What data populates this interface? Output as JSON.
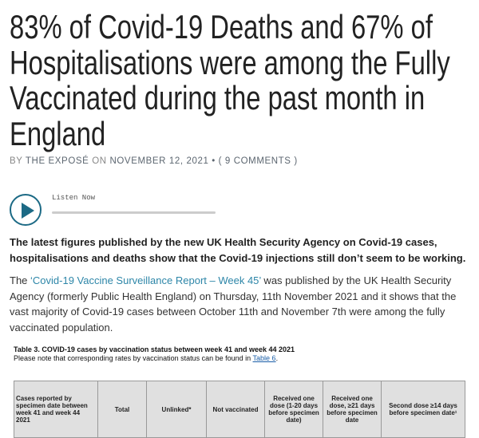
{
  "title": "83% of Covid-19 Deaths and 67% of Hospitalisations were among the Fully Vaccinated during the past month in England",
  "meta": {
    "by": "BY ",
    "author": "THE EXPOSÉ",
    "on": " ON ",
    "date": "NOVEMBER 12, 2021",
    "sep": " • ( ",
    "comments": "9 COMMENTS",
    "close": " )"
  },
  "player": {
    "label": "Listen Now"
  },
  "lead": "The latest figures published by the new UK Health Security Agency on Covid-19 cases, hospitalisations and deaths show that the Covid-19 injections still don’t seem to be working.",
  "para": {
    "pre": "The ",
    "link": "‘Covid-19 Vaccine Surveillance Report – Week 45’",
    "post": " was published by the UK Health Security Agency (formerly Public Health England) on Thursday, 11th November 2021 and it shows that the vast majority of Covid-19 cases between October 11th and November 7th were among the fully vaccinated population."
  },
  "table": {
    "caption": "Table 3. COVID-19 cases by vaccination status between week 41 and week 44 2021",
    "note": "Please note that corresponding rates by vaccination status can be found in ",
    "note_link": "Table 6",
    "note_end": ".",
    "headers": [
      "Cases reported by specimen date between week 41 and week 44 2021",
      "Total",
      "Unlinked*",
      "Not vaccinated",
      "Received one dose (1-20 days before specimen date)",
      "Received one dose, ≥21 days before specimen date",
      "Second dose ≥14 days before specimen date¹"
    ]
  }
}
